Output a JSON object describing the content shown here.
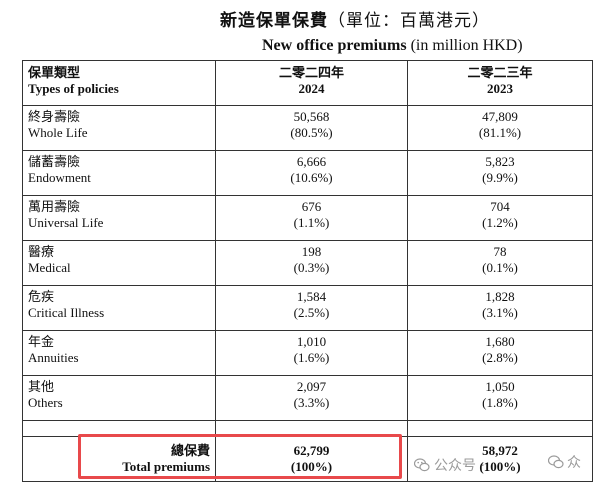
{
  "title": {
    "zh_main": "新造保單保費",
    "zh_unit": "（單位：百萬港元）",
    "en_main": "New office premiums",
    "en_unit": " (in million HKD)"
  },
  "header": {
    "col1_zh": "保單類型",
    "col1_en": "Types of policies",
    "col2_zh": "二零二四年",
    "col2_en": "2024",
    "col3_zh": "二零二三年",
    "col3_en": "2023"
  },
  "rows": [
    {
      "zh": "終身壽險",
      "en": "Whole Life",
      "v2024": "50,568",
      "p2024": "(80.5%)",
      "v2023": "47,809",
      "p2023": "(81.1%)"
    },
    {
      "zh": "儲蓄壽險",
      "en": "Endowment",
      "v2024": "6,666",
      "p2024": "(10.6%)",
      "v2023": "5,823",
      "p2023": "(9.9%)"
    },
    {
      "zh": "萬用壽險",
      "en": "Universal Life",
      "v2024": "676",
      "p2024": "(1.1%)",
      "v2023": "704",
      "p2023": "(1.2%)"
    },
    {
      "zh": "醫療",
      "en": "Medical",
      "v2024": "198",
      "p2024": "(0.3%)",
      "v2023": "78",
      "p2023": "(0.1%)"
    },
    {
      "zh": "危疾",
      "en": "Critical Illness",
      "v2024": "1,584",
      "p2024": "(2.5%)",
      "v2023": "1,828",
      "p2023": "(3.1%)"
    },
    {
      "zh": "年金",
      "en": "Annuities",
      "v2024": "1,010",
      "p2024": "(1.6%)",
      "v2023": "1,680",
      "p2023": "(2.8%)"
    },
    {
      "zh": "其他",
      "en": "Others",
      "v2024": "2,097",
      "p2024": "(3.3%)",
      "v2023": "1,050",
      "p2023": "(1.8%)"
    }
  ],
  "total": {
    "zh": "總保費",
    "en": "Total premiums",
    "v2024": "62,799",
    "p2024": "(100%)",
    "v2023": "58,972",
    "p2023": "(100%)"
  },
  "watermark": {
    "text": "公众号 · ",
    "end_text": "众",
    "icon": "wechat-icon",
    "color": "#9a9a9a"
  },
  "highlight_color": "#e8494b"
}
